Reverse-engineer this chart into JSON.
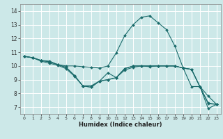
{
  "title": "",
  "xlabel": "Humidex (Indice chaleur)",
  "bg_color": "#cce8e8",
  "line_color": "#1a6b6b",
  "grid_color": "#ffffff",
  "xlim": [
    -0.5,
    23.5
  ],
  "ylim": [
    6.5,
    14.5
  ],
  "xticks": [
    0,
    1,
    2,
    3,
    4,
    5,
    6,
    7,
    8,
    9,
    10,
    11,
    12,
    13,
    14,
    15,
    16,
    17,
    18,
    19,
    20,
    21,
    22,
    23
  ],
  "yticks": [
    7,
    8,
    9,
    10,
    11,
    12,
    13,
    14
  ],
  "lines": [
    {
      "x": [
        0,
        1,
        2,
        3,
        4,
        5,
        6,
        7,
        8,
        9,
        10,
        11,
        12,
        13,
        14,
        15,
        16,
        17,
        18,
        19,
        20,
        21,
        22,
        23
      ],
      "y": [
        10.7,
        10.6,
        10.4,
        10.35,
        10.1,
        10.0,
        10.0,
        9.95,
        9.9,
        9.85,
        10.0,
        10.95,
        12.2,
        13.0,
        13.55,
        13.65,
        13.15,
        12.65,
        11.45,
        9.85,
        9.75,
        8.5,
        7.8,
        7.2
      ]
    },
    {
      "x": [
        0,
        1,
        2,
        3,
        4,
        5,
        6,
        7,
        8,
        9,
        10,
        11,
        12,
        13,
        14,
        15,
        16,
        17,
        18,
        19,
        20,
        21,
        22,
        23
      ],
      "y": [
        10.7,
        10.6,
        10.4,
        10.3,
        10.1,
        9.9,
        9.3,
        8.55,
        8.45,
        8.9,
        9.0,
        9.15,
        9.8,
        10.0,
        10.0,
        10.0,
        10.0,
        10.0,
        10.0,
        9.85,
        9.75,
        8.5,
        7.3,
        7.2
      ]
    },
    {
      "x": [
        0,
        1,
        2,
        3,
        4,
        5,
        6,
        7,
        8,
        9,
        10,
        11,
        12,
        13,
        14,
        15,
        16,
        17,
        18,
        19,
        20,
        21,
        22,
        23
      ],
      "y": [
        10.7,
        10.6,
        10.35,
        10.2,
        10.05,
        9.8,
        9.25,
        8.55,
        8.55,
        8.9,
        9.5,
        9.15,
        9.7,
        9.9,
        10.0,
        9.95,
        10.0,
        10.0,
        10.0,
        9.85,
        9.75,
        8.5,
        7.25,
        7.2
      ]
    },
    {
      "x": [
        0,
        1,
        2,
        3,
        4,
        5,
        6,
        7,
        8,
        9,
        10,
        11,
        12,
        13,
        14,
        15,
        16,
        17,
        18,
        19,
        20,
        21,
        22,
        23
      ],
      "y": [
        10.7,
        10.6,
        10.4,
        10.3,
        10.1,
        9.9,
        9.3,
        8.55,
        8.45,
        8.9,
        9.0,
        9.15,
        9.8,
        10.0,
        10.0,
        10.0,
        10.0,
        10.0,
        10.0,
        9.85,
        8.5,
        8.5,
        6.9,
        7.2
      ]
    }
  ]
}
